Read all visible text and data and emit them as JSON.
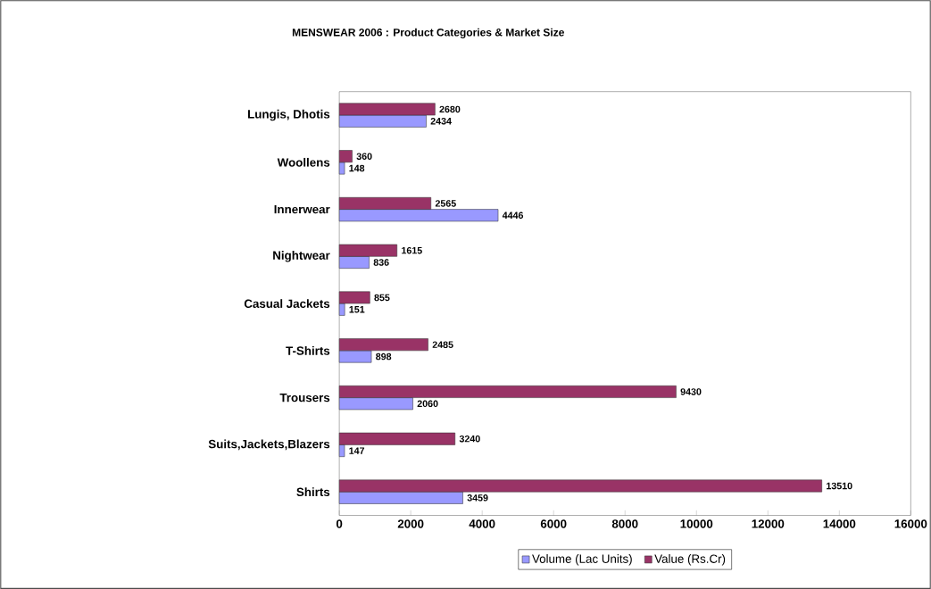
{
  "chart_data": {
    "type": "bar",
    "orientation": "horizontal",
    "title": "MENSWEAR 2006 : Product Categories & Market Size",
    "categories": [
      "Lungis, Dhotis",
      "Woollens",
      "Innerwear",
      "Nightwear",
      "Casual Jackets",
      "T-Shirts",
      "Trousers",
      "Suits,Jackets,Blazers",
      "Shirts"
    ],
    "series": [
      {
        "name": "Volume (Lac Units)",
        "color": "#9999ff",
        "values": [
          2434,
          148,
          4446,
          836,
          151,
          898,
          2060,
          147,
          3459
        ]
      },
      {
        "name": "Value (Rs.Cr)",
        "color": "#993366",
        "values": [
          2680,
          360,
          2565,
          1615,
          855,
          2485,
          9430,
          3240,
          13510
        ]
      }
    ],
    "xlim": [
      0,
      16000
    ],
    "xticks": [
      0,
      2000,
      4000,
      6000,
      8000,
      10000,
      12000,
      14000,
      16000
    ],
    "data_labels": true,
    "legend": "bottom"
  }
}
